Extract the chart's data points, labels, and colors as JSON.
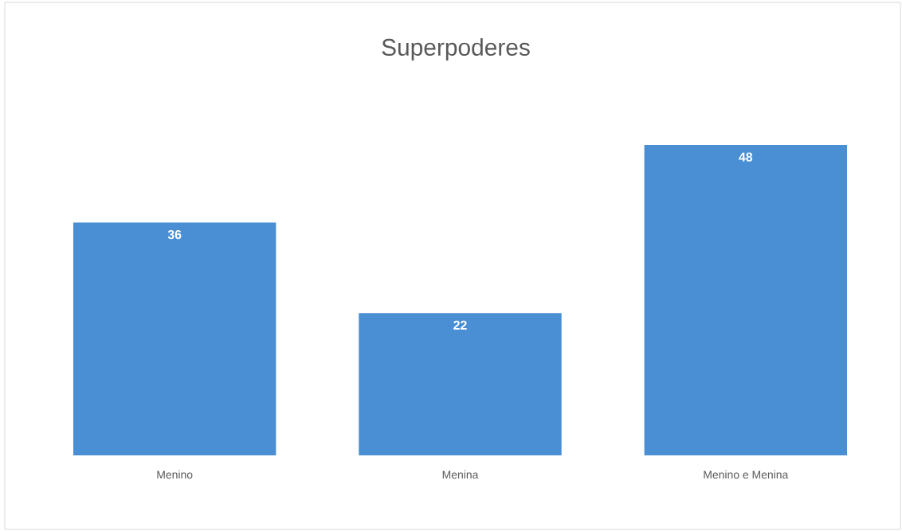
{
  "chart_data": {
    "type": "bar",
    "title": "Superpoderes",
    "categories": [
      "Menino",
      "Menina",
      "Menino e Menina"
    ],
    "values": [
      36,
      22,
      48
    ],
    "color": "#4a8fd4",
    "data_labels": true
  }
}
